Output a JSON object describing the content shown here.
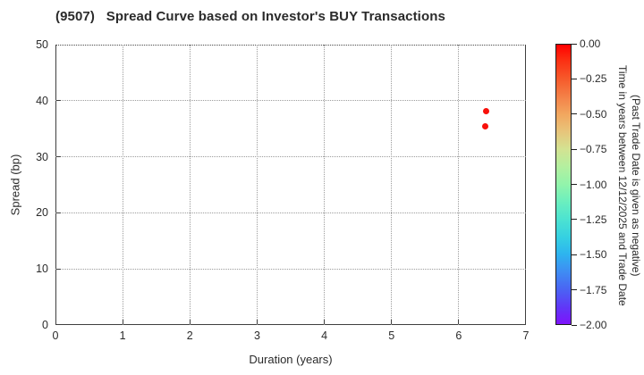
{
  "figure": {
    "background": "#ffffff",
    "text_color": "#2b2b2b"
  },
  "chart_data": {
    "type": "scatter",
    "title": "(9507)   Spread Curve based on Investor's BUY Transactions",
    "xlabel": "Duration (years)",
    "ylabel": "Spread (bp)",
    "xlim": [
      0,
      7
    ],
    "ylim": [
      0,
      50
    ],
    "xticks": [
      0,
      1,
      2,
      3,
      4,
      5,
      6,
      7
    ],
    "yticks": [
      0,
      10,
      20,
      30,
      40,
      50
    ],
    "grid": true,
    "grid_linestyle": "dotted",
    "legend": "none",
    "marker_color": "#f8100a",
    "points": [
      {
        "x": 6.41,
        "y": 38.2,
        "time_value": 0.0
      },
      {
        "x": 6.39,
        "y": 35.5,
        "time_value": 0.0
      }
    ],
    "colorbar": {
      "title_line1": "Time in years between 12/12/2025 and Trade Date",
      "title_line2": "(Past Trade Date is given as negative)",
      "vmax": 0.0,
      "vmin": -2.0,
      "tick_labels": [
        "0.00",
        "−0.25",
        "−0.50",
        "−0.75",
        "−1.00",
        "−1.25",
        "−1.50",
        "−1.75",
        "−2.00"
      ],
      "gradient": [
        {
          "pos": 0,
          "color": "#ff0000"
        },
        {
          "pos": 5,
          "color": "#fc2b10"
        },
        {
          "pos": 12.5,
          "color": "#f65b2c"
        },
        {
          "pos": 19,
          "color": "#f48349"
        },
        {
          "pos": 25,
          "color": "#f2a75f"
        },
        {
          "pos": 31,
          "color": "#e8c47a"
        },
        {
          "pos": 37.5,
          "color": "#d3e392"
        },
        {
          "pos": 44,
          "color": "#b2f0a0"
        },
        {
          "pos": 50,
          "color": "#92f4ab"
        },
        {
          "pos": 56,
          "color": "#6cefbe"
        },
        {
          "pos": 62.5,
          "color": "#4ce3d1"
        },
        {
          "pos": 69,
          "color": "#35d0e2"
        },
        {
          "pos": 75,
          "color": "#2db4ef"
        },
        {
          "pos": 81,
          "color": "#3e8ef3"
        },
        {
          "pos": 87.5,
          "color": "#4a64f3"
        },
        {
          "pos": 94,
          "color": "#6037f7"
        },
        {
          "pos": 100,
          "color": "#7e13fb"
        }
      ]
    }
  }
}
